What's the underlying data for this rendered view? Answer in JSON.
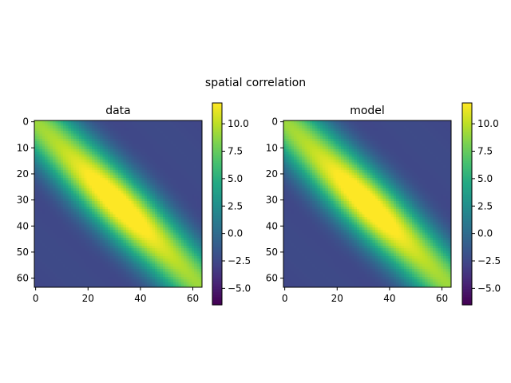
{
  "figure": {
    "suptitle": "spatial correlation"
  },
  "chart_data": [
    {
      "type": "heatmap",
      "title": "data",
      "xlabel": "",
      "ylabel": "",
      "grid_size": [
        64,
        64
      ],
      "function": "value(i,j) = 6*exp(-((j-i)^2)/450)*cos(2*pi*(j-i)/56) + 6*exp(-((i+j-63)^2)/1800) * exp(-((j-i)^2)/600) - offset; ridge along main diagonal, peak ~11.9 near (32,32), minima ~-6.5 on off-diagonal bands",
      "x_ticks": [
        0,
        20,
        40,
        60
      ],
      "y_ticks": [
        0,
        10,
        20,
        30,
        40,
        50,
        60
      ],
      "xlim": [
        -0.5,
        63.5
      ],
      "ylim": [
        63.5,
        -0.5
      ],
      "colormap": "viridis",
      "vmin": -6.5,
      "vmax": 11.9,
      "colorbar_ticks": [
        10.0,
        7.5,
        5.0,
        2.5,
        0.0,
        -2.5,
        -5.0
      ],
      "colorbar_tick_labels": [
        "10.0",
        "7.5",
        "5.0",
        "2.5",
        "0.0",
        "−2.5",
        "−5.0"
      ]
    },
    {
      "type": "heatmap",
      "title": "model",
      "xlabel": "",
      "ylabel": "",
      "grid_size": [
        64,
        64
      ],
      "function": "same field as data panel",
      "x_ticks": [
        0,
        20,
        40,
        60
      ],
      "y_ticks": [
        0,
        10,
        20,
        30,
        40,
        50,
        60
      ],
      "xlim": [
        -0.5,
        63.5
      ],
      "ylim": [
        63.5,
        -0.5
      ],
      "colormap": "viridis",
      "vmin": -6.5,
      "vmax": 11.9,
      "colorbar_ticks": [
        10.0,
        7.5,
        5.0,
        2.5,
        0.0,
        -2.5,
        -5.0
      ],
      "colorbar_tick_labels": [
        "10.0",
        "7.5",
        "5.0",
        "2.5",
        "0.0",
        "−2.5",
        "−5.0"
      ]
    }
  ]
}
